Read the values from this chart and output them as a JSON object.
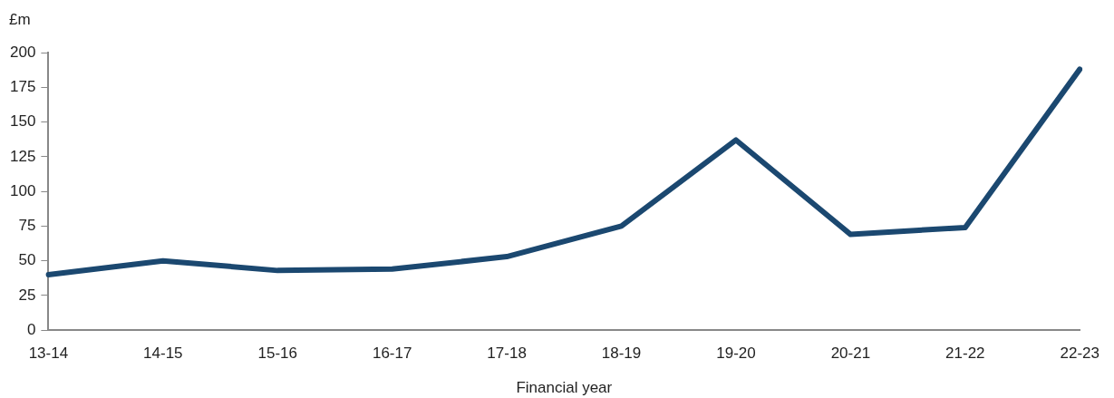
{
  "chart_data": {
    "type": "line",
    "xlabel": "Financial year",
    "ylabel": "£m",
    "categories": [
      "13-14",
      "14-15",
      "15-16",
      "16-17",
      "17-18",
      "18-19",
      "19-20",
      "20-21",
      "21-22",
      "22-23"
    ],
    "series": [
      {
        "color": "#1b4870",
        "values": [
          40,
          50,
          43,
          44,
          53,
          75,
          137,
          69,
          74,
          188
        ]
      }
    ],
    "ylim": [
      0,
      200
    ],
    "yticks": [
      0,
      25,
      50,
      75,
      100,
      125,
      150,
      175,
      200
    ],
    "grid": false,
    "legend": false,
    "marker": "none",
    "line_style": "solid"
  }
}
